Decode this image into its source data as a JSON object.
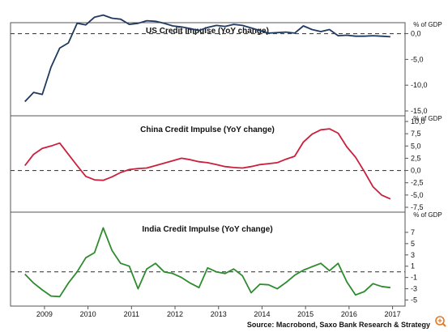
{
  "chart_data": [
    {
      "type": "line",
      "title": "US Credit Impulse (YoY change)",
      "unit": "% of GDP",
      "color": "#1f3a5f",
      "ylim": [
        -15,
        1.5
      ],
      "yticks": [
        0,
        -5,
        -10,
        -15
      ],
      "ytick_labels": [
        "0,0",
        "-5,0",
        "-10,0",
        "-15,0"
      ],
      "baseline": 0,
      "x": [
        2008.8,
        2009.0,
        2009.2,
        2009.4,
        2009.6,
        2009.8,
        2010.0,
        2010.2,
        2010.4,
        2010.6,
        2010.8,
        2011.0,
        2011.2,
        2011.4,
        2011.6,
        2011.8,
        2012.0,
        2012.2,
        2012.4,
        2012.6,
        2012.8,
        2013.0,
        2013.2,
        2013.4,
        2013.6,
        2013.8,
        2014.0,
        2014.2,
        2014.4,
        2014.6,
        2014.8,
        2015.0,
        2015.2,
        2015.4,
        2015.6,
        2015.8,
        2016.0,
        2016.2,
        2016.4,
        2016.6,
        2016.8,
        2017.0,
        2017.2
      ],
      "values": [
        -13.2,
        -11.4,
        -11.8,
        -6.5,
        -2.8,
        -1.8,
        2.0,
        1.7,
        3.2,
        3.6,
        3.0,
        2.8,
        1.8,
        2.0,
        2.5,
        2.4,
        2.0,
        1.5,
        1.3,
        1.0,
        0.6,
        1.2,
        1.6,
        1.4,
        1.8,
        1.6,
        1.1,
        0.6,
        0.1,
        0.2,
        0.3,
        0.1,
        1.5,
        0.8,
        0.4,
        0.8,
        -0.4,
        -0.3,
        -0.5,
        -0.5,
        -0.4,
        -0.5,
        -0.6
      ]
    },
    {
      "type": "line",
      "title": "China Credit Impulse (YoY change)",
      "unit": "% of GDP",
      "color": "#cc1f3c",
      "ylim": [
        -7.5,
        10
      ],
      "yticks": [
        10,
        7.5,
        5,
        2.5,
        0,
        -2.5,
        -5,
        -7.5
      ],
      "ytick_labels": [
        "10,0",
        "7,5",
        "5,0",
        "2,5",
        "0,0",
        "-2,5",
        "-5,0",
        "-7,5"
      ],
      "baseline": 0,
      "x": [
        2008.8,
        2009.0,
        2009.2,
        2009.4,
        2009.6,
        2009.8,
        2010.0,
        2010.2,
        2010.4,
        2010.6,
        2010.8,
        2011.0,
        2011.2,
        2011.4,
        2011.6,
        2011.8,
        2012.0,
        2012.2,
        2012.4,
        2012.6,
        2012.8,
        2013.0,
        2013.2,
        2013.4,
        2013.6,
        2013.8,
        2014.0,
        2014.2,
        2014.4,
        2014.6,
        2014.8,
        2015.0,
        2015.2,
        2015.4,
        2015.6,
        2015.8,
        2016.0,
        2016.2,
        2016.4,
        2016.6,
        2016.8,
        2017.0,
        2017.2
      ],
      "values": [
        1.0,
        3.3,
        4.5,
        5.0,
        5.6,
        3.3,
        1.0,
        -1.2,
        -1.9,
        -2.0,
        -1.3,
        -0.4,
        0.2,
        0.4,
        0.5,
        1.0,
        1.5,
        2.0,
        2.5,
        2.2,
        1.8,
        1.6,
        1.2,
        0.8,
        0.6,
        0.5,
        0.8,
        1.2,
        1.4,
        1.6,
        2.3,
        2.9,
        5.8,
        7.4,
        8.3,
        8.5,
        7.6,
        4.8,
        2.7,
        -0.2,
        -3.3,
        -5.0,
        -5.8
      ]
    },
    {
      "type": "line",
      "title": "India Credit Impulse (YoY change)",
      "unit": "% of GDP",
      "color": "#2e8b2e",
      "ylim": [
        -5.5,
        9
      ],
      "yticks": [
        7,
        5,
        3,
        1,
        -1,
        -3,
        -5
      ],
      "ytick_labels": [
        "7",
        "5",
        "3",
        "1",
        "-1",
        "-3",
        "-5"
      ],
      "baseline": 0,
      "x": [
        2008.8,
        2009.0,
        2009.2,
        2009.4,
        2009.6,
        2009.8,
        2010.0,
        2010.2,
        2010.4,
        2010.6,
        2010.8,
        2011.0,
        2011.2,
        2011.4,
        2011.6,
        2011.8,
        2012.0,
        2012.2,
        2012.4,
        2012.6,
        2012.8,
        2013.0,
        2013.2,
        2013.4,
        2013.6,
        2013.8,
        2014.0,
        2014.2,
        2014.4,
        2014.6,
        2014.8,
        2015.0,
        2015.2,
        2015.4,
        2015.6,
        2015.8,
        2016.0,
        2016.2,
        2016.4,
        2016.6,
        2016.8,
        2017.0,
        2017.2
      ],
      "values": [
        -0.4,
        -2.0,
        -3.2,
        -4.3,
        -4.4,
        -2.0,
        0.0,
        2.5,
        3.4,
        7.8,
        3.8,
        1.5,
        1.0,
        -3.0,
        0.5,
        1.5,
        0.0,
        -0.3,
        -1.0,
        -2.0,
        -2.8,
        0.7,
        0.0,
        -0.3,
        0.5,
        -0.7,
        -3.7,
        -2.2,
        -2.3,
        -3.0,
        -1.9,
        -0.6,
        0.3,
        0.9,
        1.5,
        0.2,
        1.5,
        -1.8,
        -4.1,
        -3.5,
        -2.1,
        -2.6,
        -2.8
      ]
    }
  ],
  "xaxis": {
    "tick_labels": [
      "2009",
      "2010",
      "2011",
      "2012",
      "2013",
      "2014",
      "2015",
      "2016",
      "2017"
    ],
    "tick_values": [
      2009.25,
      2010.25,
      2011.25,
      2012.25,
      2013.25,
      2014.25,
      2015.25,
      2016.25,
      2017.25
    ],
    "range": [
      2008.6,
      2017.5
    ]
  },
  "source": "Source: Macrobond, Saxo Bank Research & Strategy",
  "colors": {
    "frame": "#555555",
    "baseline": "#444444"
  },
  "icons": {
    "zoom": "zoom-in-icon"
  }
}
